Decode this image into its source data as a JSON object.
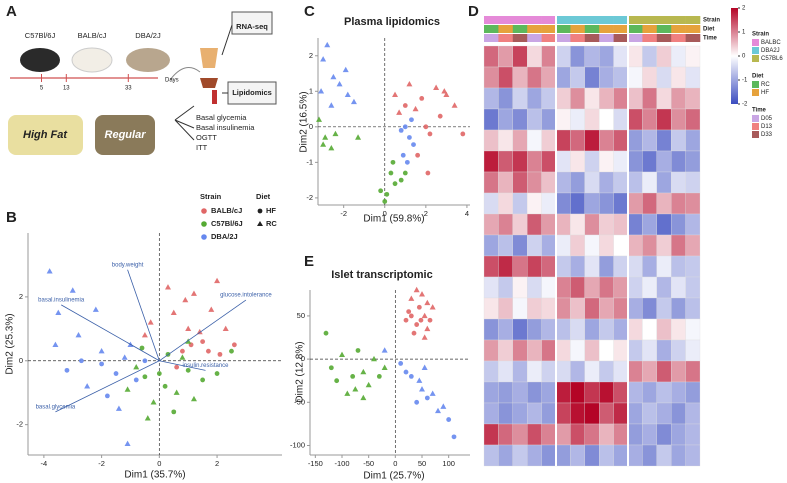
{
  "panel_a": {
    "label": "A",
    "strains": [
      "C57Bl/6J",
      "BALB/cJ",
      "DBA/2J"
    ],
    "timeline": {
      "days": [
        5,
        13,
        33
      ],
      "unit": "Days"
    },
    "diets": [
      "High Fat",
      "Regular"
    ],
    "assays": [
      "RNA-seq",
      "Lipidomics"
    ],
    "tests": [
      "Basal glycemia",
      "Basal insulinemia",
      "OGTT",
      "ITT"
    ]
  },
  "chart_data": [
    {
      "panel": "B",
      "type": "scatter",
      "xlabel": "Dim1 (35.7%)",
      "ylabel": "Dim2 (25.3%)",
      "xlim": [
        -4.55,
        4.25
      ],
      "ylim": [
        -2.95,
        4
      ],
      "xticks": [
        -4,
        -2,
        0,
        2
      ],
      "yticks": [
        -2,
        0,
        2
      ],
      "legend": {
        "strain_title": "Strain",
        "diet_title": "Diet",
        "diets": [
          {
            "name": "HF",
            "marker": "circle"
          },
          {
            "name": "RC",
            "marker": "triangle"
          }
        ]
      },
      "series": [
        {
          "name": "BALB/cJ",
          "color": "#e06666",
          "x": [
            0.5,
            1.2,
            2.0,
            1.5,
            0.8,
            2.3,
            1.0,
            0.3,
            1.8,
            2.6,
            0.6,
            1.4,
            -0.3,
            2.1,
            1.1,
            -0.5,
            0.9,
            1.7
          ],
          "y": [
            1.5,
            2.1,
            2.5,
            0.6,
            0.3,
            1.0,
            1.0,
            2.3,
            1.6,
            0.5,
            -0.2,
            0.9,
            1.2,
            0.2,
            0.5,
            0.8,
            1.9,
            0.3
          ],
          "diet": [
            "RC",
            "RC",
            "RC",
            "HF",
            "HF",
            "RC",
            "RC",
            "RC",
            "RC",
            "HF",
            "HF",
            "RC",
            "RC",
            "HF",
            "HF",
            "RC",
            "RC",
            "HF"
          ]
        },
        {
          "name": "C57Bl/6J",
          "color": "#55aa33",
          "x": [
            -0.5,
            0.2,
            1.0,
            -0.2,
            0.6,
            -0.8,
            1.5,
            0.3,
            -0.4,
            0.8,
            2.0,
            -1.1,
            0.0,
            1.2,
            0.5,
            -0.6,
            2.5,
            1.0
          ],
          "y": [
            -0.5,
            -0.8,
            -0.3,
            -1.3,
            -1.0,
            -0.2,
            -0.6,
            0.2,
            -1.8,
            0.1,
            -0.4,
            -0.9,
            -0.4,
            -1.2,
            -1.6,
            0.4,
            0.3,
            0.6
          ],
          "diet": [
            "HF",
            "HF",
            "HF",
            "RC",
            "RC",
            "RC",
            "HF",
            "HF",
            "RC",
            "RC",
            "HF",
            "RC",
            "HF",
            "RC",
            "HF",
            "HF",
            "HF",
            "RC"
          ]
        },
        {
          "name": "DBA/2J",
          "color": "#6688ee",
          "x": [
            -3.8,
            -3.5,
            -2.8,
            -3.2,
            -2.5,
            -2.0,
            -1.5,
            -1.2,
            -3.0,
            -1.8,
            -2.2,
            -0.8,
            -1.0,
            -2.7,
            -3.6,
            -1.4,
            -0.5,
            -1.1,
            -2.0
          ],
          "y": [
            2.8,
            1.5,
            0.8,
            -0.3,
            -0.8,
            0.3,
            -0.4,
            0.1,
            2.2,
            -1.1,
            1.6,
            -0.6,
            0.5,
            0.0,
            0.5,
            -1.5,
            0.0,
            -2.6,
            -0.1
          ],
          "diet": [
            "RC",
            "RC",
            "RC",
            "HF",
            "RC",
            "RC",
            "HF",
            "RC",
            "RC",
            "HF",
            "RC",
            "HF",
            "RC",
            "HF",
            "RC",
            "RC",
            "HF",
            "RC",
            "HF"
          ]
        }
      ],
      "loadings": [
        {
          "name": "body.weight",
          "x": -1.1,
          "y": 2.85
        },
        {
          "name": "basal.insulinemia",
          "x": -3.4,
          "y": 1.75
        },
        {
          "name": "glucose.intolerance",
          "x": 3.0,
          "y": 1.9
        },
        {
          "name": "insulin.resistance",
          "x": 1.6,
          "y": -0.3
        },
        {
          "name": "basal.glycemia",
          "x": -3.6,
          "y": -1.6
        }
      ]
    },
    {
      "panel": "C",
      "type": "scatter",
      "title": "Plasma lipidomics",
      "xlabel": "Dim1 (59.8%)",
      "ylabel": "Dim2 (16.5%)",
      "xlim": [
        -3.25,
        4.15
      ],
      "ylim": [
        -2.2,
        2.5
      ],
      "xticks": [
        -2,
        0,
        2,
        4
      ],
      "yticks": [
        -2,
        -1,
        0,
        1,
        2
      ],
      "series": [
        {
          "name": "BALB/cJ",
          "color": "#e06666",
          "x": [
            0.5,
            1.0,
            1.5,
            2.0,
            2.2,
            3.0,
            2.5,
            1.8,
            3.4,
            1.2,
            2.7,
            1.6,
            2.1,
            3.8,
            0.7,
            2.9
          ],
          "y": [
            0.9,
            0.6,
            0.5,
            0.0,
            -0.2,
            0.9,
            1.1,
            0.8,
            0.6,
            1.2,
            0.3,
            -0.8,
            -1.3,
            -0.2,
            0.4,
            1.0
          ],
          "diet": [
            "RC",
            "HF",
            "RC",
            "HF",
            "HF",
            "RC",
            "RC",
            "HF",
            "RC",
            "RC",
            "HF",
            "HF",
            "HF",
            "HF",
            "RC",
            "RC"
          ]
        },
        {
          "name": "C57Bl/6J",
          "color": "#55aa33",
          "x": [
            -3.2,
            -2.9,
            -2.6,
            -3.0,
            -2.4,
            -1.3,
            0.3,
            0.5,
            0.1,
            0.8,
            0.0,
            1.0,
            0.4,
            -0.2
          ],
          "y": [
            0.2,
            -0.3,
            -0.6,
            -0.5,
            -0.2,
            -0.3,
            -1.3,
            -1.6,
            -1.9,
            -1.5,
            -2.1,
            -1.3,
            -1.0,
            -1.8
          ],
          "diet": [
            "RC",
            "RC",
            "RC",
            "RC",
            "RC",
            "RC",
            "HF",
            "HF",
            "HF",
            "HF",
            "HF",
            "HF",
            "HF",
            "HF"
          ]
        },
        {
          "name": "DBA/2J",
          "color": "#6688ee",
          "x": [
            -2.5,
            -3.0,
            -2.2,
            -1.8,
            -3.1,
            -2.6,
            -1.5,
            -1.9,
            0.8,
            1.2,
            1.0,
            1.4,
            0.9,
            1.1,
            1.3,
            -2.8
          ],
          "y": [
            1.4,
            1.9,
            1.2,
            0.9,
            1.0,
            0.6,
            0.7,
            1.6,
            -0.1,
            -0.3,
            0.0,
            -0.5,
            -0.8,
            -1.0,
            0.2,
            2.3
          ],
          "diet": [
            "RC",
            "RC",
            "RC",
            "RC",
            "RC",
            "RC",
            "RC",
            "RC",
            "HF",
            "HF",
            "HF",
            "HF",
            "HF",
            "HF",
            "HF",
            "RC"
          ]
        }
      ]
    },
    {
      "panel": "E",
      "type": "scatter",
      "title": "Islet transcriptomic",
      "xlabel": "Dim1 (25.7%)",
      "ylabel": "Dim2 (12.8%)",
      "xlim": [
        -160,
        140
      ],
      "ylim": [
        -111,
        80
      ],
      "xticks": [
        -150,
        -100,
        -50,
        0,
        50,
        100
      ],
      "yticks": [
        -100,
        -50,
        0,
        50
      ],
      "series": [
        {
          "name": "BALB/cJ",
          "color": "#e06666",
          "x": [
            30,
            45,
            55,
            40,
            60,
            25,
            50,
            65,
            35,
            70,
            20,
            55,
            40,
            30,
            60,
            48
          ],
          "y": [
            70,
            60,
            50,
            40,
            35,
            55,
            75,
            45,
            30,
            60,
            45,
            25,
            80,
            50,
            65,
            45
          ],
          "diet": [
            "RC",
            "HF",
            "RC",
            "HF",
            "RC",
            "HF",
            "RC",
            "HF",
            "HF",
            "RC",
            "HF",
            "RC",
            "RC",
            "HF",
            "RC",
            "HF"
          ]
        },
        {
          "name": "C57Bl/6J",
          "color": "#55aa33",
          "x": [
            -120,
            -100,
            -80,
            -60,
            -90,
            -70,
            -50,
            -110,
            -40,
            -30,
            -75,
            -130,
            -20,
            -60
          ],
          "y": [
            -10,
            5,
            -20,
            -15,
            -40,
            10,
            -30,
            -25,
            0,
            -20,
            -35,
            30,
            -10,
            -45
          ],
          "diet": [
            "HF",
            "RC",
            "HF",
            "RC",
            "RC",
            "HF",
            "RC",
            "HF",
            "RC",
            "HF",
            "RC",
            "HF",
            "RC",
            "RC"
          ]
        },
        {
          "name": "DBA/2J",
          "color": "#6688ee",
          "x": [
            30,
            50,
            60,
            80,
            20,
            45,
            100,
            110,
            70,
            40,
            -20,
            90,
            10,
            55
          ],
          "y": [
            -20,
            -35,
            -45,
            -60,
            -15,
            -25,
            -70,
            -90,
            -40,
            -50,
            10,
            -55,
            -5,
            -10
          ],
          "diet": [
            "HF",
            "RC",
            "HF",
            "RC",
            "HF",
            "RC",
            "HF",
            "HF",
            "RC",
            "HF",
            "RC",
            "RC",
            "HF",
            "RC"
          ]
        }
      ]
    },
    {
      "panel": "D",
      "type": "heatmap",
      "clim": [
        -2,
        2
      ],
      "cticks": [
        2,
        1,
        0,
        -1,
        -2
      ],
      "colormap": {
        "low": "#3b4cc0",
        "mid": "#ffffff",
        "high": "#b40426"
      },
      "annotations": [
        {
          "name": "Strain",
          "levels": [
            {
              "name": "BALBC",
              "color": "#e58ad8"
            },
            {
              "name": "DBA2J",
              "color": "#6cc9d6"
            },
            {
              "name": "C57BL6",
              "color": "#b8b850"
            }
          ],
          "columns": [
            "BALBC",
            "BALBC",
            "BALBC",
            "BALBC",
            "BALBC",
            "DBA2J",
            "DBA2J",
            "DBA2J",
            "DBA2J",
            "DBA2J",
            "C57BL6",
            "C57BL6",
            "C57BL6",
            "C57BL6",
            "C57BL6"
          ]
        },
        {
          "name": "Diet",
          "levels": [
            {
              "name": "RC",
              "color": "#5cb85c"
            },
            {
              "name": "HF",
              "color": "#e6a23c"
            }
          ],
          "columns": [
            "RC",
            "HF",
            "RC",
            "HF",
            "HF",
            "RC",
            "HF",
            "RC",
            "HF",
            "HF",
            "RC",
            "HF",
            "RC",
            "HF",
            "HF"
          ]
        },
        {
          "name": "Time",
          "levels": [
            {
              "name": "D05",
              "color": "#c9a6e4"
            },
            {
              "name": "D13",
              "color": "#f08080"
            },
            {
              "name": "D33",
              "color": "#a85a5a"
            }
          ],
          "columns": [
            "D05",
            "D13",
            "D33",
            "D05",
            "D13",
            "D05",
            "D13",
            "D33",
            "D05",
            "D33",
            "D05",
            "D13",
            "D33",
            "D13",
            "D33"
          ]
        }
      ],
      "values": [
        [
          1.2,
          0.8,
          1.5,
          0.3,
          1.0,
          -0.5,
          -1.2,
          -0.8,
          -1.0,
          -0.3,
          0.2,
          -0.6,
          0.4,
          -0.2,
          0.1
        ],
        [
          0.9,
          1.4,
          0.6,
          1.1,
          0.7,
          -1.0,
          -0.6,
          -1.4,
          -0.9,
          -0.7,
          -0.1,
          0.3,
          -0.4,
          0.2,
          -0.3
        ],
        [
          -0.8,
          -1.2,
          -0.5,
          -1.0,
          -0.6,
          0.4,
          0.9,
          0.2,
          0.6,
          1.0,
          0.5,
          1.1,
          0.3,
          0.8,
          0.6
        ],
        [
          -1.5,
          -1.0,
          -1.3,
          -0.7,
          -1.1,
          0.1,
          -0.2,
          0.3,
          0.0,
          -0.4,
          1.4,
          1.0,
          1.6,
          0.9,
          1.2
        ],
        [
          0.5,
          0.2,
          0.7,
          -0.1,
          0.4,
          1.5,
          1.2,
          1.8,
          1.0,
          1.3,
          -1.1,
          -0.8,
          -1.4,
          -0.6,
          -1.0
        ],
        [
          1.8,
          1.3,
          1.6,
          1.0,
          1.4,
          -0.3,
          0.2,
          -0.5,
          0.1,
          -0.2,
          -1.2,
          -1.5,
          -0.9,
          -1.3,
          -1.1
        ],
        [
          1.1,
          0.6,
          1.3,
          0.9,
          0.5,
          -0.8,
          -1.1,
          -0.4,
          -0.9,
          -0.6,
          -0.7,
          -0.2,
          -1.0,
          -0.4,
          -0.5
        ],
        [
          -0.4,
          0.3,
          -0.6,
          0.1,
          -0.2,
          -1.3,
          -1.6,
          -1.0,
          -1.2,
          -1.5,
          0.8,
          1.2,
          0.6,
          1.0,
          0.9
        ],
        [
          0.7,
          1.0,
          0.4,
          1.3,
          0.8,
          0.6,
          0.2,
          0.9,
          0.4,
          0.5,
          -1.4,
          -1.0,
          -1.6,
          -1.2,
          -0.8
        ],
        [
          -1.0,
          -0.7,
          -1.3,
          -0.5,
          -0.9,
          -0.2,
          0.4,
          -0.1,
          0.3,
          0.0,
          0.6,
          0.9,
          0.4,
          1.1,
          0.7
        ],
        [
          1.4,
          1.7,
          1.1,
          1.5,
          1.2,
          -0.6,
          -0.9,
          -0.3,
          -1.1,
          -0.5,
          -0.4,
          -0.9,
          -0.2,
          -0.7,
          -0.6
        ],
        [
          -0.3,
          -0.6,
          0.1,
          -0.4,
          -0.1,
          1.0,
          1.3,
          0.7,
          1.1,
          0.8,
          -0.5,
          -0.2,
          -0.8,
          -0.3,
          -0.6
        ],
        [
          0.2,
          0.5,
          -0.1,
          0.4,
          0.3,
          0.9,
          0.5,
          1.2,
          0.7,
          1.0,
          -0.9,
          -1.3,
          -0.6,
          -1.1,
          -0.7
        ],
        [
          -1.2,
          -0.9,
          -1.5,
          -1.1,
          -0.8,
          -0.7,
          -0.4,
          -1.0,
          -0.6,
          -0.9,
          0.3,
          0.0,
          0.5,
          0.2,
          -0.1
        ],
        [
          0.8,
          0.4,
          1.0,
          0.6,
          1.1,
          0.3,
          -0.1,
          0.5,
          0.0,
          0.2,
          -0.6,
          -0.3,
          -0.9,
          -0.5,
          -0.2
        ],
        [
          -0.6,
          -0.3,
          -0.8,
          -0.2,
          -0.5,
          -0.4,
          -0.8,
          -0.2,
          -0.6,
          -0.3,
          1.0,
          0.7,
          1.3,
          0.8,
          1.1
        ],
        [
          -1.0,
          -1.1,
          -0.9,
          -1.2,
          -1.0,
          1.8,
          2.0,
          1.6,
          1.9,
          1.4,
          -0.8,
          -1.0,
          -0.7,
          -0.9,
          -1.1
        ],
        [
          -0.9,
          -1.2,
          -1.0,
          -0.8,
          -1.1,
          1.5,
          1.9,
          2.0,
          1.3,
          1.7,
          -1.0,
          -0.7,
          -0.9,
          -1.2,
          -0.8
        ],
        [
          1.6,
          1.2,
          0.9,
          1.4,
          1.0,
          0.8,
          1.4,
          1.1,
          0.6,
          1.0,
          -1.1,
          -0.9,
          -1.3,
          -1.0,
          -0.8
        ],
        [
          -0.7,
          -1.0,
          -0.6,
          -0.9,
          -1.2,
          -1.1,
          -0.8,
          -1.3,
          -0.7,
          -1.0,
          -0.9,
          -1.2,
          -0.6,
          -1.0,
          -0.8
        ]
      ]
    }
  ]
}
